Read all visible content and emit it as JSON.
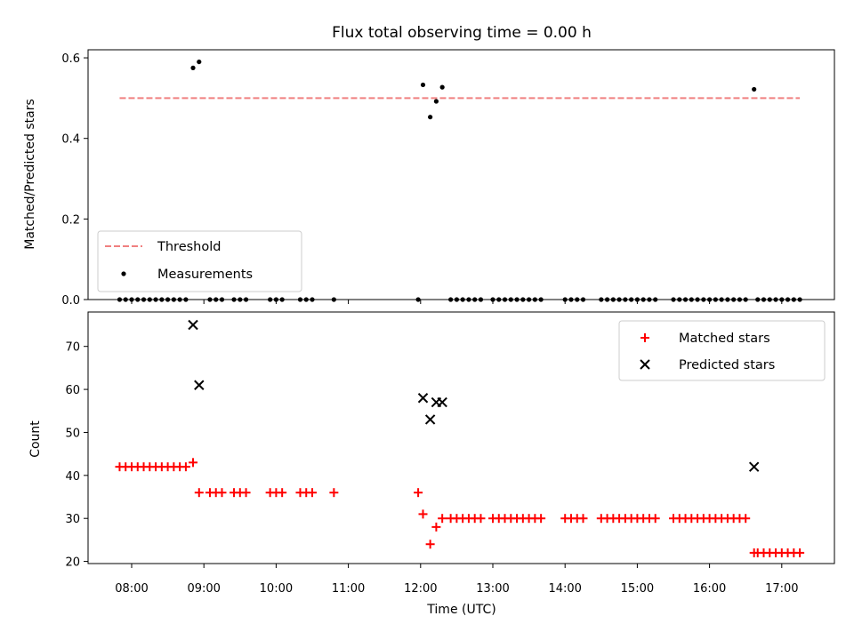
{
  "chart_data": {
    "title": "Flux total observing time = 0.00 h",
    "x_ticks": [
      "08:00",
      "09:00",
      "10:00",
      "11:00",
      "12:00",
      "13:00",
      "14:00",
      "15:00",
      "16:00",
      "17:00"
    ],
    "xlabel": "Time (UTC)",
    "top_panel": {
      "type": "scatter",
      "ylabel": "Matched/Predicted stars",
      "ylim": [
        0.0,
        0.62
      ],
      "y_ticks": [
        "0.0",
        "0.2",
        "0.4",
        "0.6"
      ],
      "legend_placement": "lower-left",
      "threshold": {
        "name": "Threshold",
        "value": 0.5,
        "color": "#f08080",
        "x_start": "07:50",
        "x_end": "17:15"
      },
      "measurements": {
        "name": "Measurements",
        "color": "#000000",
        "points": [
          [
            "07:50",
            0
          ],
          [
            "07:55",
            0
          ],
          [
            "08:00",
            0
          ],
          [
            "08:05",
            0
          ],
          [
            "08:10",
            0
          ],
          [
            "08:15",
            0
          ],
          [
            "08:20",
            0
          ],
          [
            "08:25",
            0
          ],
          [
            "08:30",
            0
          ],
          [
            "08:35",
            0
          ],
          [
            "08:40",
            0
          ],
          [
            "08:45",
            0
          ],
          [
            "08:51",
            0.575
          ],
          [
            "08:56",
            0.59
          ],
          [
            "09:05",
            0
          ],
          [
            "09:10",
            0
          ],
          [
            "09:15",
            0
          ],
          [
            "09:25",
            0
          ],
          [
            "09:30",
            0
          ],
          [
            "09:35",
            0
          ],
          [
            "09:55",
            0
          ],
          [
            "10:00",
            0
          ],
          [
            "10:05",
            0
          ],
          [
            "10:20",
            0
          ],
          [
            "10:25",
            0
          ],
          [
            "10:30",
            0
          ],
          [
            "10:48",
            0
          ],
          [
            "11:58",
            0
          ],
          [
            "12:02",
            0.533
          ],
          [
            "12:08",
            0.453
          ],
          [
            "12:13",
            0.492
          ],
          [
            "12:18",
            0.527
          ],
          [
            "12:25",
            0
          ],
          [
            "12:30",
            0
          ],
          [
            "12:35",
            0
          ],
          [
            "12:40",
            0
          ],
          [
            "12:45",
            0
          ],
          [
            "12:50",
            0
          ],
          [
            "13:00",
            0
          ],
          [
            "13:05",
            0
          ],
          [
            "13:10",
            0
          ],
          [
            "13:15",
            0
          ],
          [
            "13:20",
            0
          ],
          [
            "13:25",
            0
          ],
          [
            "13:30",
            0
          ],
          [
            "13:35",
            0
          ],
          [
            "13:40",
            0
          ],
          [
            "14:00",
            0
          ],
          [
            "14:05",
            0
          ],
          [
            "14:10",
            0
          ],
          [
            "14:15",
            0
          ],
          [
            "14:30",
            0
          ],
          [
            "14:35",
            0
          ],
          [
            "14:40",
            0
          ],
          [
            "14:45",
            0
          ],
          [
            "14:50",
            0
          ],
          [
            "14:55",
            0
          ],
          [
            "15:00",
            0
          ],
          [
            "15:05",
            0
          ],
          [
            "15:10",
            0
          ],
          [
            "15:15",
            0
          ],
          [
            "15:30",
            0
          ],
          [
            "15:35",
            0
          ],
          [
            "15:40",
            0
          ],
          [
            "15:45",
            0
          ],
          [
            "15:50",
            0
          ],
          [
            "15:55",
            0
          ],
          [
            "16:00",
            0
          ],
          [
            "16:05",
            0
          ],
          [
            "16:10",
            0
          ],
          [
            "16:15",
            0
          ],
          [
            "16:20",
            0
          ],
          [
            "16:25",
            0
          ],
          [
            "16:30",
            0
          ],
          [
            "16:37",
            0.522
          ],
          [
            "16:40",
            0
          ],
          [
            "16:45",
            0
          ],
          [
            "16:50",
            0
          ],
          [
            "16:55",
            0
          ],
          [
            "17:00",
            0
          ],
          [
            "17:05",
            0
          ],
          [
            "17:10",
            0
          ],
          [
            "17:15",
            0
          ]
        ]
      }
    },
    "bottom_panel": {
      "type": "scatter",
      "ylabel": "Count",
      "ylim": [
        19.5,
        78
      ],
      "y_ticks": [
        "20",
        "30",
        "40",
        "50",
        "60",
        "70"
      ],
      "legend_placement": "top-right",
      "matched": {
        "name": "Matched stars",
        "color": "#ff0000",
        "points": [
          [
            "07:50",
            42
          ],
          [
            "07:55",
            42
          ],
          [
            "08:00",
            42
          ],
          [
            "08:05",
            42
          ],
          [
            "08:10",
            42
          ],
          [
            "08:15",
            42
          ],
          [
            "08:20",
            42
          ],
          [
            "08:25",
            42
          ],
          [
            "08:30",
            42
          ],
          [
            "08:35",
            42
          ],
          [
            "08:40",
            42
          ],
          [
            "08:45",
            42
          ],
          [
            "08:51",
            43
          ],
          [
            "08:56",
            36
          ],
          [
            "09:05",
            36
          ],
          [
            "09:10",
            36
          ],
          [
            "09:15",
            36
          ],
          [
            "09:25",
            36
          ],
          [
            "09:30",
            36
          ],
          [
            "09:35",
            36
          ],
          [
            "09:55",
            36
          ],
          [
            "10:00",
            36
          ],
          [
            "10:05",
            36
          ],
          [
            "10:20",
            36
          ],
          [
            "10:25",
            36
          ],
          [
            "10:30",
            36
          ],
          [
            "10:48",
            36
          ],
          [
            "11:58",
            36
          ],
          [
            "12:02",
            31
          ],
          [
            "12:08",
            24
          ],
          [
            "12:13",
            28
          ],
          [
            "12:18",
            30
          ],
          [
            "12:25",
            30
          ],
          [
            "12:30",
            30
          ],
          [
            "12:35",
            30
          ],
          [
            "12:40",
            30
          ],
          [
            "12:45",
            30
          ],
          [
            "12:50",
            30
          ],
          [
            "13:00",
            30
          ],
          [
            "13:05",
            30
          ],
          [
            "13:10",
            30
          ],
          [
            "13:15",
            30
          ],
          [
            "13:20",
            30
          ],
          [
            "13:25",
            30
          ],
          [
            "13:30",
            30
          ],
          [
            "13:35",
            30
          ],
          [
            "13:40",
            30
          ],
          [
            "14:00",
            30
          ],
          [
            "14:05",
            30
          ],
          [
            "14:10",
            30
          ],
          [
            "14:15",
            30
          ],
          [
            "14:30",
            30
          ],
          [
            "14:35",
            30
          ],
          [
            "14:40",
            30
          ],
          [
            "14:45",
            30
          ],
          [
            "14:50",
            30
          ],
          [
            "14:55",
            30
          ],
          [
            "15:00",
            30
          ],
          [
            "15:05",
            30
          ],
          [
            "15:10",
            30
          ],
          [
            "15:15",
            30
          ],
          [
            "15:30",
            30
          ],
          [
            "15:35",
            30
          ],
          [
            "15:40",
            30
          ],
          [
            "15:45",
            30
          ],
          [
            "15:50",
            30
          ],
          [
            "15:55",
            30
          ],
          [
            "16:00",
            30
          ],
          [
            "16:05",
            30
          ],
          [
            "16:10",
            30
          ],
          [
            "16:15",
            30
          ],
          [
            "16:20",
            30
          ],
          [
            "16:25",
            30
          ],
          [
            "16:30",
            30
          ],
          [
            "16:37",
            22
          ],
          [
            "16:40",
            22
          ],
          [
            "16:45",
            22
          ],
          [
            "16:50",
            22
          ],
          [
            "16:55",
            22
          ],
          [
            "17:00",
            22
          ],
          [
            "17:05",
            22
          ],
          [
            "17:10",
            22
          ],
          [
            "17:15",
            22
          ]
        ]
      },
      "predicted": {
        "name": "Predicted stars",
        "color": "#000000",
        "points": [
          [
            "08:51",
            75
          ],
          [
            "08:56",
            61
          ],
          [
            "12:02",
            58
          ],
          [
            "12:08",
            53
          ],
          [
            "12:13",
            57
          ],
          [
            "12:18",
            57
          ],
          [
            "16:37",
            42
          ]
        ]
      }
    }
  }
}
